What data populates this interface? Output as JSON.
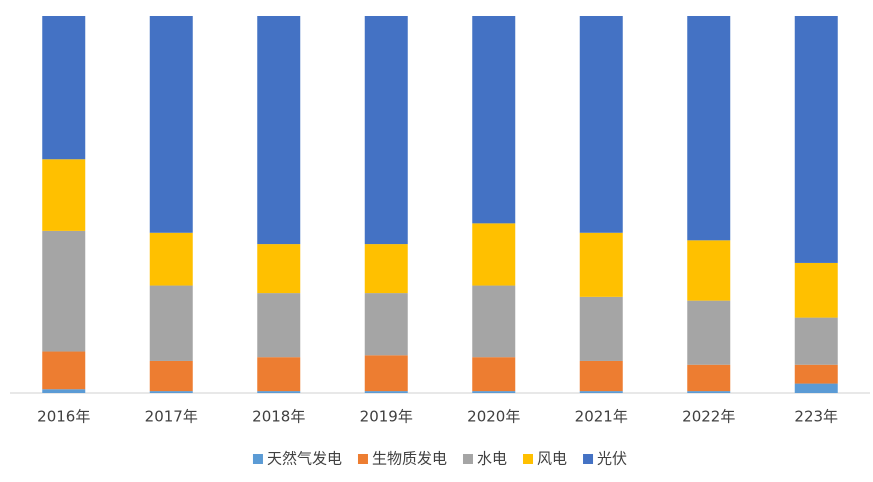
{
  "chart_data": {
    "type": "stacked_bar_percent",
    "categories": [
      "2016年",
      "2017年",
      "2018年",
      "2019年",
      "2020年",
      "2021年",
      "2022年",
      "223年"
    ],
    "series": [
      {
        "name": "天然气发电",
        "color": "#5b9bd5",
        "values": [
          1,
          0.5,
          0.5,
          0.5,
          0.5,
          0.5,
          0.5,
          2.5
        ]
      },
      {
        "name": "生物质发电",
        "color": "#ed7d31",
        "values": [
          10,
          8,
          9,
          9.5,
          9,
          8,
          7,
          5
        ]
      },
      {
        "name": "水电",
        "color": "#a5a5a5",
        "values": [
          32,
          20,
          17,
          16.5,
          19,
          17,
          17,
          12.5
        ]
      },
      {
        "name": "风电",
        "color": "#ffc000",
        "values": [
          19,
          14,
          13,
          13,
          16.5,
          17,
          16,
          14.5
        ]
      },
      {
        "name": "光伏",
        "color": "#4472c4",
        "values": [
          38,
          57.5,
          60.5,
          60.5,
          55,
          57.5,
          59.5,
          65.5
        ]
      }
    ],
    "legend": "bottom"
  }
}
